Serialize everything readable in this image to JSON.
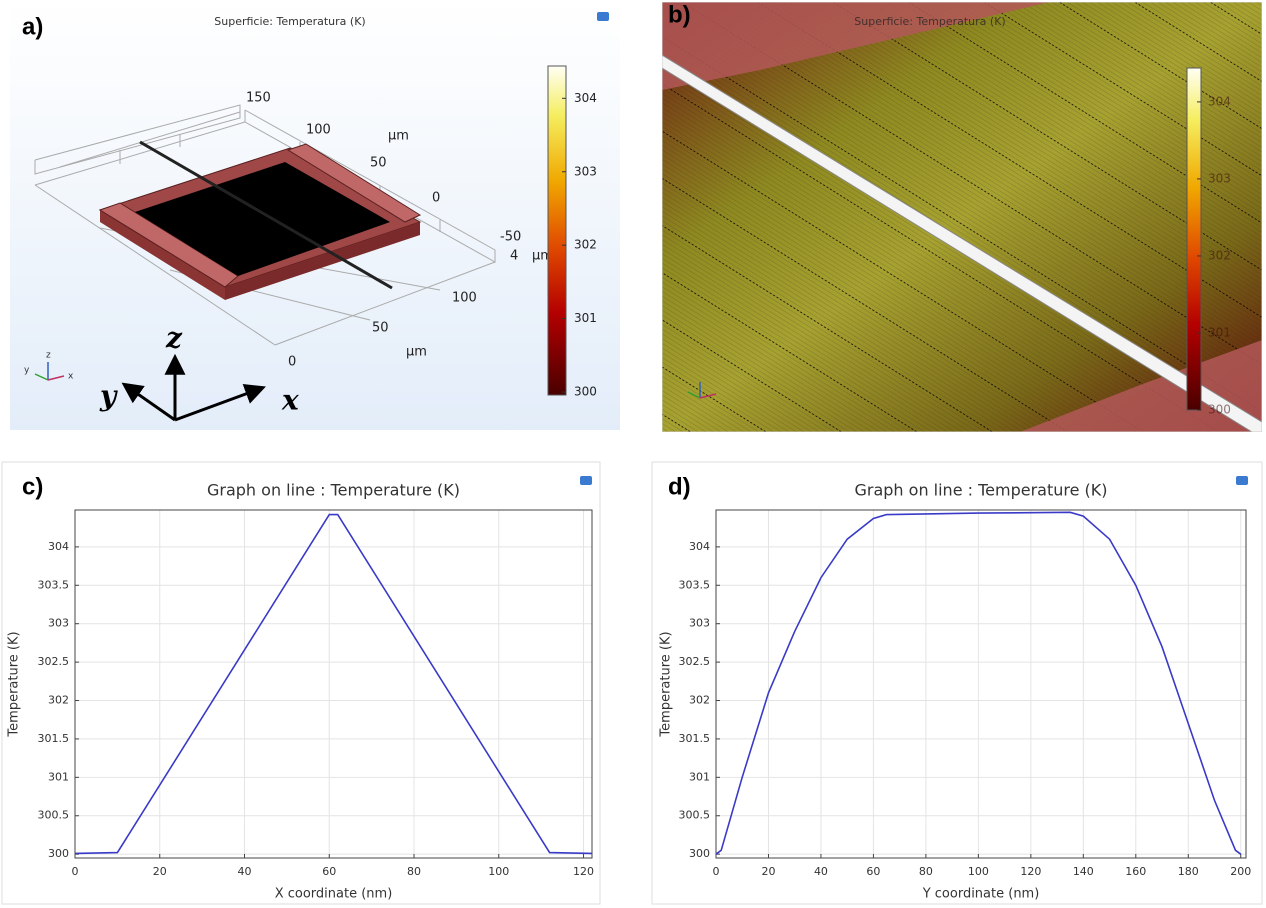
{
  "panels": [
    {
      "label": "a)",
      "title": "Superficie: Temperatura (K)",
      "colorbar": {
        "lim": [
          299.96,
          304.44
        ],
        "ticks": [
          300,
          301,
          302,
          303,
          304
        ]
      },
      "axis_labels": [
        "150",
        "100",
        "50",
        "0",
        "-50",
        "4",
        "100",
        "50",
        "0"
      ],
      "unit": "µm",
      "axes": [
        "z",
        "y",
        "x"
      ]
    },
    {
      "label": "b)",
      "title": "Superficie: Temperatura (K)",
      "colorbar": {
        "lim": [
          300,
          304.44
        ],
        "ticks": [
          300,
          301,
          302,
          303,
          304
        ]
      }
    }
  ],
  "chart_data": [
    {
      "type": "line",
      "label": "c)",
      "title": "Graph on line : Temperature (K)",
      "x_label": "X coordinate (nm)",
      "y_label": "Temperature (K)",
      "x": [
        0,
        10,
        60,
        62,
        112,
        122
      ],
      "values": [
        300.01,
        300.02,
        304.42,
        304.42,
        300.02,
        300.01
      ],
      "color": "#3a3ac8",
      "grid": true,
      "xlim": [
        0,
        122
      ],
      "xticks": [
        0,
        20,
        40,
        60,
        80,
        100,
        120
      ],
      "ylim": [
        299.95,
        304.48
      ],
      "yticks": [
        300,
        300.5,
        301,
        301.5,
        302,
        302.5,
        303,
        303.5,
        304
      ]
    },
    {
      "type": "line",
      "label": "d)",
      "title": "Graph on line : Temperature (K)",
      "x_label": "Y coordinate (nm)",
      "y_label": "Temperature (K)",
      "x": [
        0,
        2,
        10,
        20,
        30,
        40,
        50,
        60,
        65,
        100,
        135,
        140,
        150,
        160,
        170,
        180,
        190,
        198,
        200
      ],
      "values": [
        300,
        300.05,
        301,
        302.1,
        302.9,
        303.6,
        304.1,
        304.37,
        304.42,
        304.44,
        304.45,
        304.4,
        304.1,
        303.5,
        302.7,
        301.7,
        300.7,
        300.05,
        300
      ],
      "color": "#3a3ac8",
      "grid": true,
      "xlim": [
        0,
        202
      ],
      "xticks": [
        0,
        20,
        40,
        60,
        80,
        100,
        120,
        140,
        160,
        180,
        200
      ],
      "ylim": [
        299.95,
        304.48
      ],
      "yticks": [
        300,
        300.5,
        301,
        301.5,
        302,
        302.5,
        303,
        303.5,
        304
      ]
    }
  ]
}
